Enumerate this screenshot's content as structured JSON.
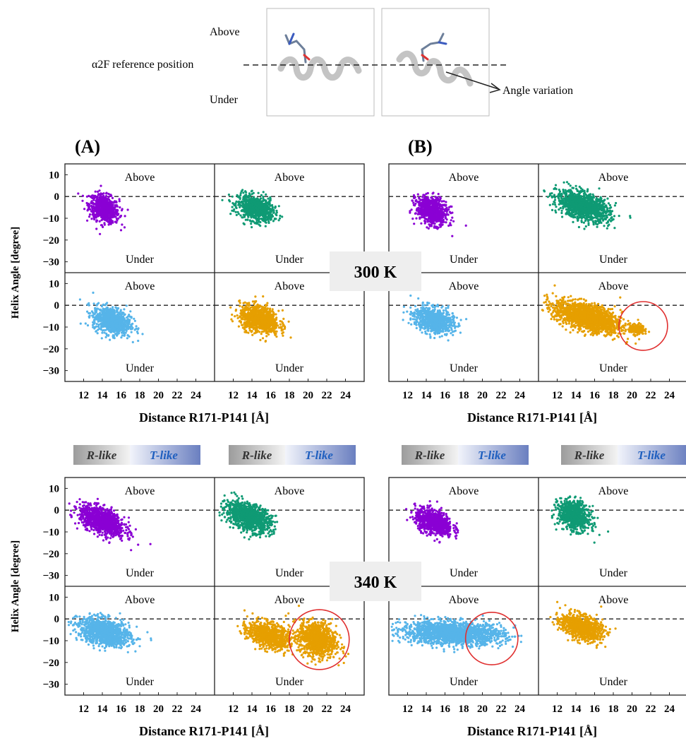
{
  "header": {
    "above": "Above",
    "under": "Under",
    "reference": "α2F reference position",
    "angle_variation": "Angle variation"
  },
  "panel_labels": [
    "(A)",
    "(B)"
  ],
  "temperatures": [
    "300 K",
    "340 K"
  ],
  "legend": {
    "r_like": "R-like",
    "t_like": "T-like",
    "r_color": "#9c9c9c",
    "t_color": "#6a7fc0",
    "t_text_color": "#1f5fbf"
  },
  "region_labels": {
    "above": "Above",
    "under": "Under"
  },
  "colors": {
    "purple": "#8a00d4",
    "green": "#0f9a74",
    "blue": "#56b4e9",
    "orange": "#e69f00",
    "circle": "#e03030"
  },
  "chart_data": [
    {
      "type": "scatter",
      "group": "A",
      "temperature": "300 K",
      "xlabel": "Distance R171-P141 [Å]",
      "ylabel": "Helix Angle [degree]",
      "xlim": [
        10,
        26
      ],
      "ylim": [
        -35,
        15
      ],
      "xticks": [
        12,
        14,
        16,
        18,
        20,
        22,
        24
      ],
      "yticks": [
        10,
        0,
        -10,
        -20,
        -30
      ],
      "reference_line_y": 0,
      "series": [
        {
          "quadrant": "top-left",
          "color": "#8a00d4",
          "clusters": [
            {
              "cx": 14.2,
              "cy": -5.5,
              "sx": 0.8,
              "sy": 3.2,
              "rho": -0.3
            }
          ]
        },
        {
          "quadrant": "top-right",
          "color": "#0f9a74",
          "clusters": [
            {
              "cx": 14.4,
              "cy": -5.5,
              "sx": 0.95,
              "sy": 3.0,
              "rho": -0.3
            }
          ]
        },
        {
          "quadrant": "bottom-left",
          "color": "#56b4e9",
          "clusters": [
            {
              "cx": 15.0,
              "cy": -7.0,
              "sx": 1.0,
              "sy": 3.2,
              "rho": -0.3
            }
          ]
        },
        {
          "quadrant": "bottom-right",
          "color": "#e69f00",
          "clusters": [
            {
              "cx": 14.8,
              "cy": -6.5,
              "sx": 1.05,
              "sy": 3.2,
              "rho": -0.3
            }
          ]
        }
      ]
    },
    {
      "type": "scatter",
      "group": "B",
      "temperature": "300 K",
      "xlabel": "Distance R171-P141 [Å]",
      "ylabel": "",
      "xlim": [
        10,
        26
      ],
      "ylim": [
        -35,
        15
      ],
      "xticks": [
        12,
        14,
        16,
        18,
        20,
        22,
        24
      ],
      "yticks": [
        10,
        0,
        -10,
        -20,
        -30
      ],
      "reference_line_y": 0,
      "series": [
        {
          "quadrant": "top-left",
          "color": "#8a00d4",
          "clusters": [
            {
              "cx": 14.6,
              "cy": -6.5,
              "sx": 0.85,
              "sy": 3.2,
              "rho": -0.3
            }
          ]
        },
        {
          "quadrant": "top-right",
          "color": "#0f9a74",
          "clusters": [
            {
              "cx": 14.8,
              "cy": -4.5,
              "sx": 1.4,
              "sy": 3.4,
              "rho": -0.45
            }
          ]
        },
        {
          "quadrant": "bottom-left",
          "color": "#56b4e9",
          "clusters": [
            {
              "cx": 14.8,
              "cy": -6.8,
              "sx": 1.05,
              "sy": 3.0,
              "rho": -0.3
            }
          ]
        },
        {
          "quadrant": "bottom-right",
          "color": "#e69f00",
          "clusters": [
            {
              "cx": 15.3,
              "cy": -5.5,
              "sx": 1.8,
              "sy": 3.6,
              "rho": -0.55
            },
            {
              "cx": 20.5,
              "cy": -11.0,
              "sx": 0.4,
              "sy": 1.2,
              "rho": 0
            }
          ]
        }
      ],
      "highlight": {
        "quadrant": "bottom-right",
        "cx": 21.2,
        "cy": -9.5,
        "r": 2.6
      }
    },
    {
      "type": "scatter",
      "group": "A",
      "temperature": "340 K",
      "xlabel": "Distance R171-P141 [Å]",
      "ylabel": "Helix Angle [degree]",
      "xlim": [
        10,
        26
      ],
      "ylim": [
        -35,
        15
      ],
      "xticks": [
        12,
        14,
        16,
        18,
        20,
        22,
        24
      ],
      "yticks": [
        10,
        0,
        -10,
        -20,
        -30
      ],
      "reference_line_y": 0,
      "series": [
        {
          "quadrant": "top-left",
          "color": "#8a00d4",
          "clusters": [
            {
              "cx": 14.0,
              "cy": -5.0,
              "sx": 1.2,
              "sy": 3.4,
              "rho": -0.55
            }
          ]
        },
        {
          "quadrant": "top-right",
          "color": "#0f9a74",
          "clusters": [
            {
              "cx": 13.6,
              "cy": -3.0,
              "sx": 1.2,
              "sy": 3.4,
              "rho": -0.45
            }
          ]
        },
        {
          "quadrant": "bottom-left",
          "color": "#56b4e9",
          "clusters": [
            {
              "cx": 14.2,
              "cy": -6.0,
              "sx": 1.4,
              "sy": 3.2,
              "rho": -0.35
            }
          ]
        },
        {
          "quadrant": "bottom-right",
          "color": "#e69f00",
          "clusters": [
            {
              "cx": 15.8,
              "cy": -7.5,
              "sx": 1.1,
              "sy": 3.0,
              "rho": -0.35
            },
            {
              "cx": 21.0,
              "cy": -9.5,
              "sx": 1.0,
              "sy": 4.0,
              "rho": -0.2
            }
          ]
        }
      ],
      "highlight": {
        "quadrant": "bottom-right",
        "cx": 21.2,
        "cy": -9.5,
        "r": 3.2
      }
    },
    {
      "type": "scatter",
      "group": "B",
      "temperature": "340 K",
      "xlabel": "Distance R171-P141 [Å]",
      "ylabel": "",
      "xlim": [
        10,
        26
      ],
      "ylim": [
        -35,
        15
      ],
      "xticks": [
        12,
        14,
        16,
        18,
        20,
        22,
        24
      ],
      "yticks": [
        10,
        0,
        -10,
        -20,
        -30
      ],
      "reference_line_y": 0,
      "series": [
        {
          "quadrant": "top-left",
          "color": "#8a00d4",
          "clusters": [
            {
              "cx": 14.8,
              "cy": -5.5,
              "sx": 1.0,
              "sy": 3.0,
              "rho": -0.4
            }
          ]
        },
        {
          "quadrant": "top-right",
          "color": "#0f9a74",
          "clusters": [
            {
              "cx": 13.8,
              "cy": -2.5,
              "sx": 0.85,
              "sy": 3.4,
              "rho": -0.3
            }
          ]
        },
        {
          "quadrant": "bottom-left",
          "color": "#56b4e9",
          "clusters": [
            {
              "cx": 16.8,
              "cy": -6.5,
              "sx": 2.7,
              "sy": 2.6,
              "rho": -0.15
            }
          ]
        },
        {
          "quadrant": "bottom-right",
          "color": "#e69f00",
          "clusters": [
            {
              "cx": 14.6,
              "cy": -3.8,
              "sx": 1.1,
              "sy": 3.0,
              "rho": -0.4
            }
          ]
        }
      ],
      "highlight": {
        "quadrant": "bottom-left",
        "cx": 21.0,
        "cy": -9.0,
        "r": 2.8
      }
    }
  ]
}
